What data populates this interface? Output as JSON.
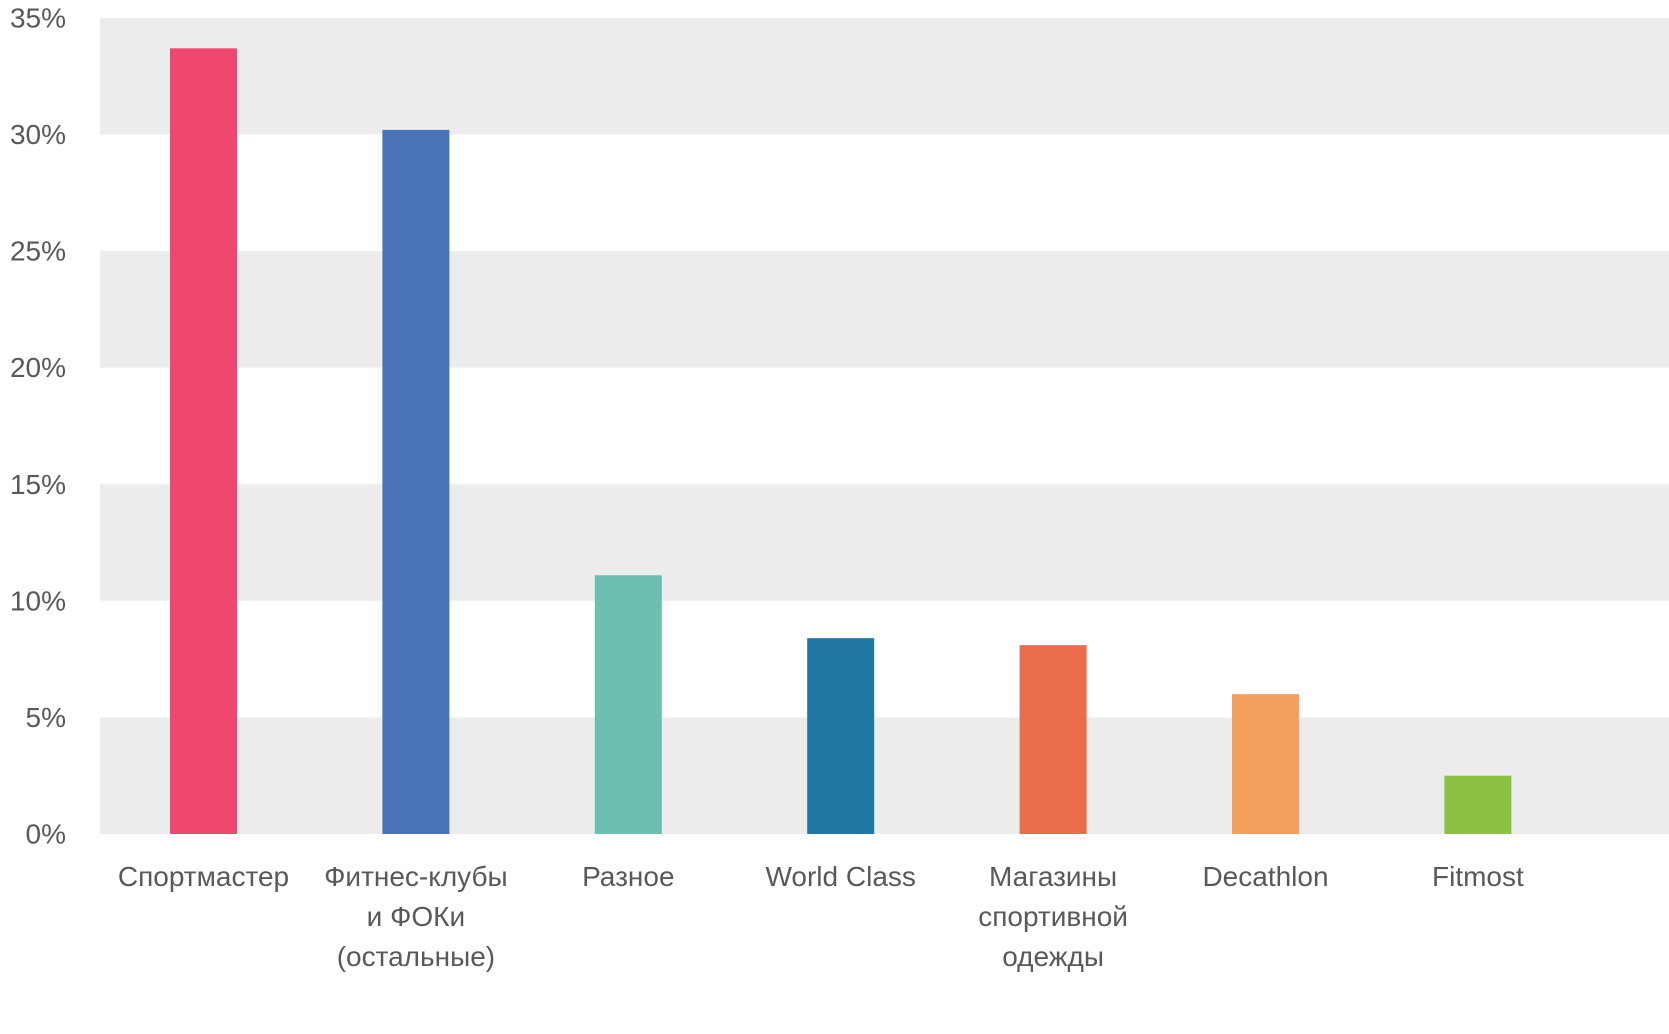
{
  "chart_data": {
    "type": "bar",
    "categories": [
      [
        "Спортмастер"
      ],
      [
        "Фитнес-клубы",
        "и ФОКи",
        "(остальные)"
      ],
      [
        "Разное"
      ],
      [
        "World Class"
      ],
      [
        "Магазины",
        "спортивной",
        "одежды"
      ],
      [
        "Decathlon"
      ],
      [
        "Fitmost"
      ]
    ],
    "values": [
      33.7,
      30.2,
      11.1,
      8.4,
      8.1,
      6.0,
      2.5
    ],
    "colors": [
      "#ef476f",
      "#4a72b7",
      "#6dc0b1",
      "#1f78a1",
      "#ea6e4c",
      "#f4a05c",
      "#8ec046"
    ],
    "yticks": [
      "0%",
      "5%",
      "10%",
      "15%",
      "20%",
      "25%",
      "30%",
      "35%"
    ],
    "ylim": [
      0,
      35
    ],
    "ytick_step": 5,
    "band_colors": [
      "#ebeceb",
      "#ffffff"
    ],
    "grid": "alternating horizontal bands",
    "legend": "none"
  }
}
